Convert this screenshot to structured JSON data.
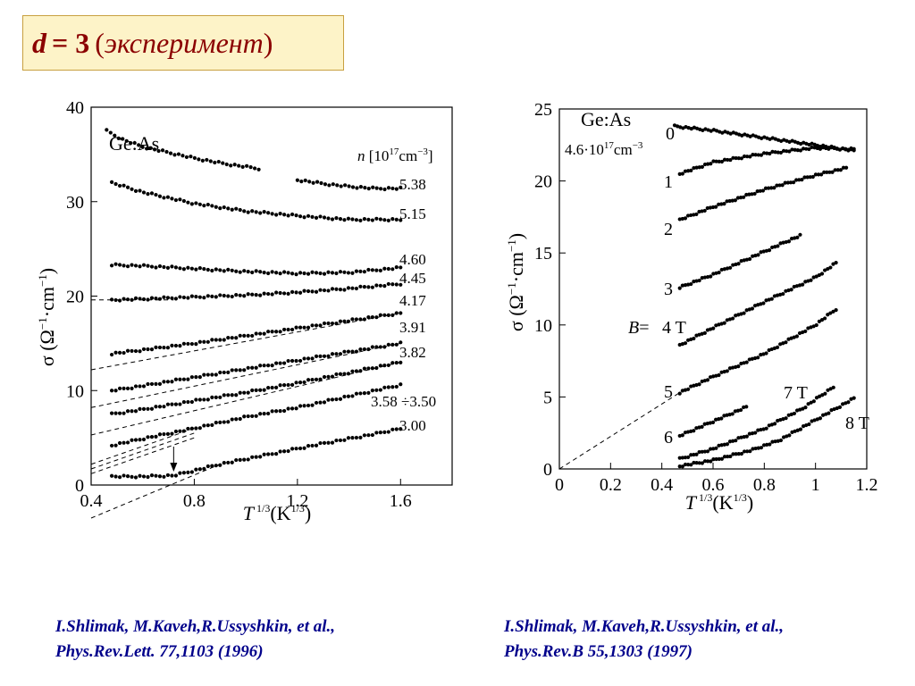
{
  "title": {
    "d": "d",
    "eq": "= 3",
    "open": "(",
    "word": "эксперимент",
    "close": ")"
  },
  "references": [
    {
      "line1": "I.Shlimak, M.Kaveh,R.Ussyshkin, et al.,",
      "line2": "Phys.Rev.Lett. 77,1103 (1996)"
    },
    {
      "line1": "I.Shlimak, M.Kaveh,R.Ussyshkin, et al.,",
      "line2": "Phys.Rev.B 55,1303 (1997)"
    }
  ],
  "chart_data": [
    {
      "type": "scatter",
      "material": "Ge:As",
      "legend_title": "n [10^17cm^-3]",
      "ylabel": "σ (Ω^-1·cm^-1)",
      "xlabel": "T^1/3 (K^1/3)",
      "xlim": [
        0.4,
        1.8
      ],
      "ylim": [
        0,
        40
      ],
      "xticks": [
        0.4,
        0.8,
        1.2,
        1.6
      ],
      "yticks": [
        0,
        10,
        20,
        30,
        40
      ],
      "series": [
        {
          "name": "",
          "x": [
            0.46,
            0.52,
            0.6,
            0.7,
            0.8,
            0.92,
            1.05
          ],
          "y": [
            37.5,
            36.6,
            35.8,
            35.2,
            34.6,
            34.0,
            33.5
          ]
        },
        {
          "name": "5.38",
          "x": [
            1.2,
            1.3,
            1.4,
            1.5,
            1.6
          ],
          "y": [
            32.3,
            31.9,
            31.6,
            31.4,
            31.4
          ]
        },
        {
          "name": "5.15",
          "x": [
            0.48,
            0.6,
            0.8,
            1.0,
            1.2,
            1.4,
            1.6
          ],
          "y": [
            32.0,
            31.0,
            29.8,
            29.0,
            28.5,
            28.1,
            28.1
          ]
        },
        {
          "name": "4.60",
          "x": [
            0.48,
            0.6,
            0.8,
            1.0,
            1.2,
            1.4,
            1.6
          ],
          "y": [
            23.3,
            23.2,
            22.9,
            22.6,
            22.4,
            22.5,
            23.0
          ]
        },
        {
          "name": "4.45",
          "x": [
            0.48,
            0.6,
            0.8,
            1.0,
            1.2,
            1.4,
            1.6
          ],
          "y": [
            19.6,
            19.7,
            19.9,
            20.1,
            20.4,
            20.8,
            21.3
          ]
        },
        {
          "name": "4.17",
          "x": [
            0.48,
            0.6,
            0.8,
            1.0,
            1.2,
            1.4,
            1.6
          ],
          "y": [
            13.9,
            14.3,
            15.0,
            15.8,
            16.6,
            17.4,
            18.2
          ]
        },
        {
          "name": "3.91",
          "x": [
            0.48,
            0.6,
            0.8,
            1.0,
            1.2,
            1.4,
            1.6
          ],
          "y": [
            10.0,
            10.5,
            11.4,
            12.3,
            13.2,
            14.1,
            15.0
          ]
        },
        {
          "name": "3.82",
          "x": [
            0.48,
            0.6,
            0.8,
            1.0,
            1.2,
            1.4,
            1.6
          ],
          "y": [
            7.5,
            8.0,
            8.9,
            9.8,
            10.8,
            11.9,
            13.0
          ]
        },
        {
          "name": "3.58 ÷3.50",
          "x": [
            0.48,
            0.6,
            0.8,
            1.0,
            1.2,
            1.4,
            1.6
          ],
          "y": [
            4.2,
            4.9,
            6.0,
            7.2,
            8.2,
            9.4,
            10.6
          ]
        },
        {
          "name": "3.00",
          "x": [
            0.48,
            0.6,
            0.72,
            0.9,
            1.1,
            1.3,
            1.5,
            1.6
          ],
          "y": [
            0.9,
            0.9,
            1.0,
            2.2,
            3.3,
            4.4,
            5.4,
            6.0
          ]
        }
      ],
      "extrapolations": [
        {
          "x": [
            0.4,
            0.72
          ],
          "y": [
            19.6,
            19.6
          ]
        },
        {
          "x": [
            0.4,
            1.6
          ],
          "y": [
            12.2,
            18.2
          ]
        },
        {
          "x": [
            0.4,
            1.6
          ],
          "y": [
            8.2,
            15.0
          ]
        },
        {
          "x": [
            0.4,
            1.6
          ],
          "y": [
            5.3,
            13.0
          ]
        },
        {
          "x": [
            0.4,
            0.8
          ],
          "y": [
            2.2,
            6.0
          ]
        },
        {
          "x": [
            0.4,
            0.8
          ],
          "y": [
            1.7,
            5.5
          ]
        },
        {
          "x": [
            0.4,
            0.8
          ],
          "y": [
            1.2,
            5.0
          ]
        },
        {
          "x": [
            0.4,
            0.9
          ],
          "y": [
            -3.5,
            2.2
          ]
        }
      ],
      "arrow_x": 0.72
    },
    {
      "type": "scatter",
      "material": "Ge:As",
      "concentration": "4.6·10^17cm^-3",
      "ylabel": "σ (Ω^-1·cm^-1)",
      "xlabel": "T^1/3 (K^1/3)",
      "xlim": [
        0,
        1.2
      ],
      "ylim": [
        0,
        25
      ],
      "xticks": [
        0,
        0.2,
        0.4,
        0.6,
        0.8,
        1.0,
        1.2
      ],
      "yticks": [
        0,
        5,
        10,
        15,
        20,
        25
      ],
      "field_prefix": "B=",
      "series": [
        {
          "name": "0",
          "x": [
            0.45,
            0.6,
            0.8,
            1.0,
            1.15
          ],
          "y": [
            23.8,
            23.5,
            23.0,
            22.5,
            22.1
          ]
        },
        {
          "name": "1",
          "x": [
            0.47,
            0.6,
            0.8,
            1.0,
            1.15
          ],
          "y": [
            20.5,
            21.3,
            21.9,
            22.3,
            22.2
          ]
        },
        {
          "name": "2",
          "x": [
            0.47,
            0.6,
            0.8,
            1.0,
            1.12
          ],
          "y": [
            17.3,
            18.2,
            19.4,
            20.4,
            20.9
          ]
        },
        {
          "name": "3",
          "x": [
            0.47,
            0.6,
            0.75,
            0.9,
            0.94
          ],
          "y": [
            12.6,
            13.5,
            14.7,
            15.9,
            16.2
          ]
        },
        {
          "name": "4 T",
          "x": [
            0.47,
            0.6,
            0.8,
            1.0,
            1.08
          ],
          "y": [
            8.6,
            9.8,
            11.6,
            13.3,
            14.3
          ]
        },
        {
          "name": "5",
          "x": [
            0.47,
            0.6,
            0.8,
            1.0,
            1.08
          ],
          "y": [
            5.3,
            6.4,
            8.0,
            10.0,
            11.1
          ]
        },
        {
          "name": "6",
          "x": [
            0.47,
            0.6,
            0.73
          ],
          "y": [
            2.3,
            3.3,
            4.3
          ]
        },
        {
          "name": "7 T",
          "x": [
            0.47,
            0.6,
            0.8,
            0.95,
            1.07
          ],
          "y": [
            0.7,
            1.4,
            2.8,
            4.2,
            5.7
          ]
        },
        {
          "name": "8 T",
          "x": [
            0.47,
            0.6,
            0.75,
            0.86,
            1.0,
            1.15
          ],
          "y": [
            0.2,
            0.6,
            1.3,
            2.0,
            3.4,
            4.9
          ]
        }
      ],
      "extrapolations": [
        {
          "x": [
            0.0,
            0.47
          ],
          "y": [
            0.0,
            5.3
          ]
        }
      ]
    }
  ]
}
